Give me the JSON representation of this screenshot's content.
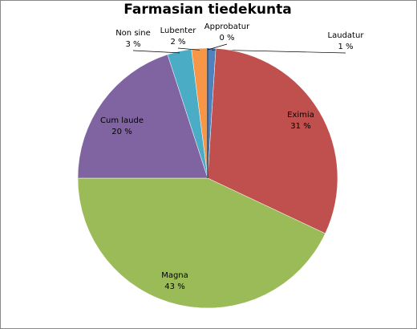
{
  "chart_data": {
    "type": "pie",
    "title": "Farmasian tiedekunta",
    "categories": [
      "Laudatur",
      "Eximia",
      "Magna",
      "Cum laude",
      "Non sine",
      "Lubenter",
      "Approbatur"
    ],
    "values": [
      1,
      31,
      43,
      20,
      3,
      2,
      0
    ],
    "value_labels": [
      "1 %",
      "31 %",
      "43 %",
      "20 %",
      "3 %",
      "2 %",
      "0 %"
    ],
    "colors": [
      "#4f81bd",
      "#c0504d",
      "#9bbb59",
      "#8064a2",
      "#4bacc6",
      "#f79646",
      "#2c4d75"
    ]
  }
}
